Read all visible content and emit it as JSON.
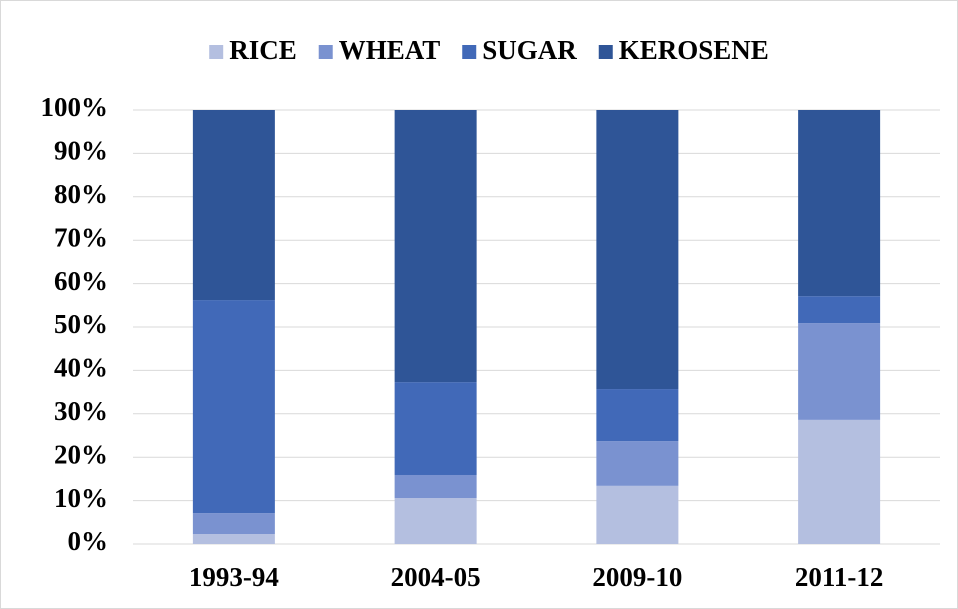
{
  "chart_data": {
    "type": "stacked_bar",
    "categories": [
      "1993-94",
      "2004-05",
      "2009-10",
      "2011-12"
    ],
    "series": [
      {
        "name": "RICE",
        "color": "#b4bfe0",
        "values": [
          2.3,
          10.6,
          13.4,
          28.6
        ]
      },
      {
        "name": "WHEAT",
        "color": "#7a92d0",
        "values": [
          4.8,
          5.3,
          10.3,
          22.3
        ]
      },
      {
        "name": "SUGAR",
        "color": "#4169b8",
        "values": [
          49.1,
          21.4,
          12.0,
          6.2
        ]
      },
      {
        "name": "KEROSENE",
        "color": "#2f5597",
        "values": [
          43.8,
          62.7,
          64.3,
          42.9
        ]
      }
    ],
    "ylim": [
      0,
      100
    ],
    "yticks": [
      {
        "value": 0,
        "label": "0%"
      },
      {
        "value": 10,
        "label": "10%"
      },
      {
        "value": 20,
        "label": "20%"
      },
      {
        "value": 30,
        "label": "30%"
      },
      {
        "value": 40,
        "label": "40%"
      },
      {
        "value": 50,
        "label": "50%"
      },
      {
        "value": 60,
        "label": "60%"
      },
      {
        "value": 70,
        "label": "70%"
      },
      {
        "value": 80,
        "label": "80%"
      },
      {
        "value": 90,
        "label": "90%"
      },
      {
        "value": 100,
        "label": "100%"
      }
    ],
    "grid": true,
    "legend": "top"
  }
}
